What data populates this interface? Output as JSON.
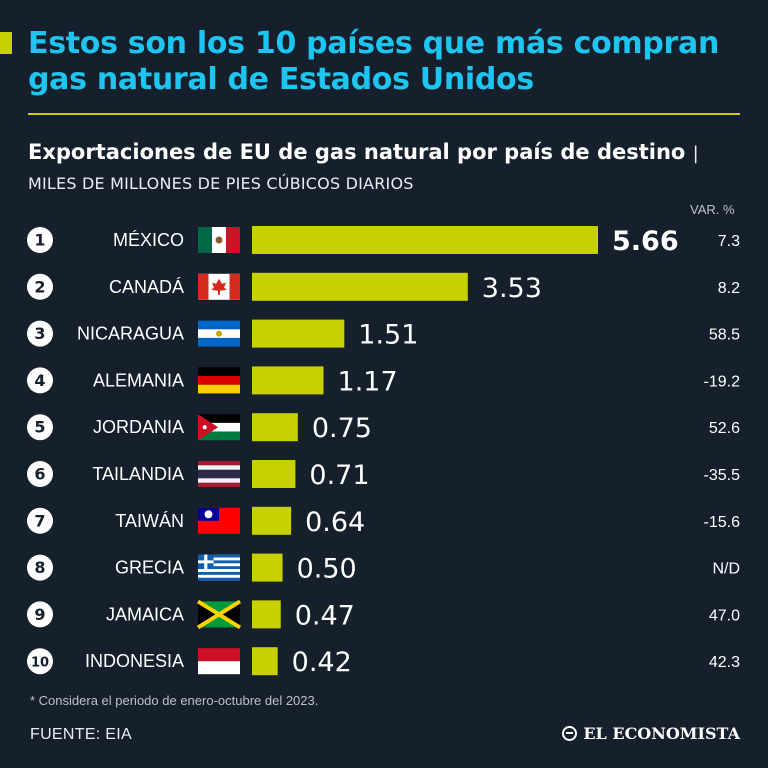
{
  "title": "Estos son los 10 países que más compran gas natural de Estados Unidos",
  "subtitle": "Exportaciones de EU de gas natural por país de destino",
  "subtitle_separator": "|",
  "unit_label": "MILES DE MILLONES DE PIES CÚBICOS DIARIOS",
  "var_header": "VAR. %",
  "footnote": "* Considera el periodo de enero-octubre del 2023.",
  "source": "FUENTE: EIA",
  "brand": "EL ECONOMISTA",
  "colors": {
    "background": "#16202c",
    "title": "#1ec5f0",
    "bar": "#c8d100",
    "accent": "#c8d100",
    "text": "#ffffff"
  },
  "chart_data": {
    "type": "bar",
    "orientation": "horizontal",
    "categories": [
      "MÉXICO",
      "CANADÁ",
      "NICARAGUA",
      "ALEMANIA",
      "JORDANIA",
      "TAILANDIA",
      "TAIWÁN",
      "GRECIA",
      "JAMAICA",
      "INDONESIA"
    ],
    "ranks": [
      "1",
      "2",
      "3",
      "4",
      "5",
      "6",
      "7",
      "8",
      "9",
      "10"
    ],
    "values": [
      5.66,
      3.53,
      1.51,
      1.17,
      0.75,
      0.71,
      0.64,
      0.5,
      0.47,
      0.42
    ],
    "value_labels": [
      "5.66",
      "3.53",
      "1.51",
      "1.17",
      "0.75",
      "0.71",
      "0.64",
      "0.50",
      "0.47",
      "0.42"
    ],
    "variation_pct": [
      "7.3",
      "8.2",
      "58.5",
      "-19.2",
      "52.6",
      "-35.5",
      "-15.6",
      "N/D",
      "47.0",
      "42.3"
    ],
    "flags": [
      "mexico-flag",
      "canada-flag",
      "nicaragua-flag",
      "germany-flag",
      "jordan-flag",
      "thailand-flag",
      "taiwan-flag",
      "greece-flag",
      "jamaica-flag",
      "indonesia-flag"
    ],
    "xlim": [
      0,
      5.66
    ],
    "grid": false,
    "legend": "none"
  }
}
